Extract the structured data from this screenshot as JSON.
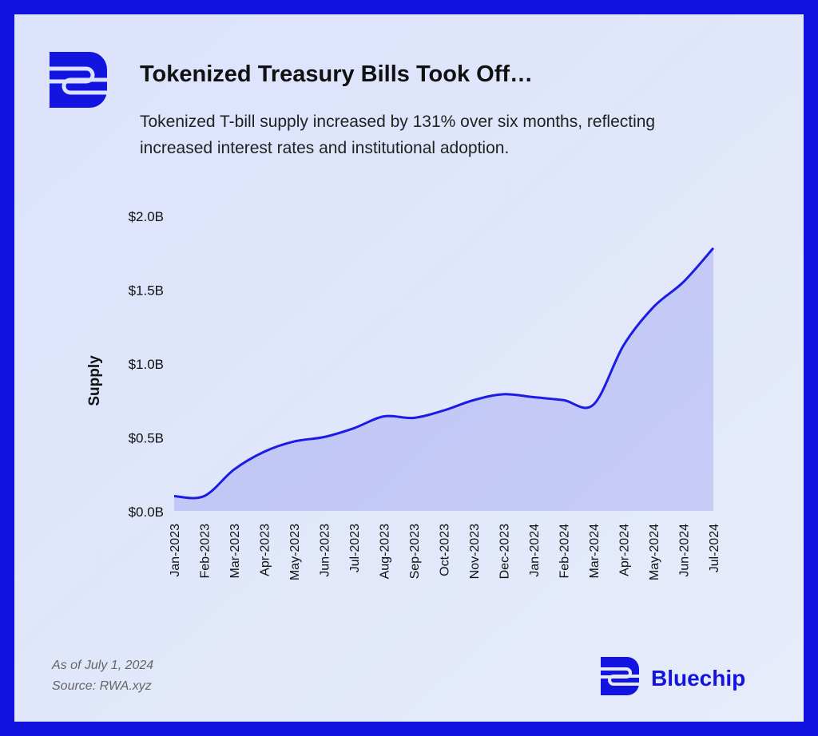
{
  "chart_data": {
    "type": "area",
    "title": "Tokenized Treasury Bills Took Off…",
    "subtitle": [
      "Tokenized T-bill supply increased by 131% over six months, reflecting",
      "increased interest rates and institutional adoption."
    ],
    "y_label": "Supply",
    "categories": [
      "Jan-2023",
      "Feb-2023",
      "Mar-2023",
      "Apr-2023",
      "May-2023",
      "Jun-2023",
      "Jul-2023",
      "Aug-2023",
      "Sep-2023",
      "Oct-2023",
      "Nov-2023",
      "Dec-2023",
      "Jan-2024",
      "Feb-2024",
      "Mar-2024",
      "Apr-2024",
      "May-2024",
      "Jun-2024",
      "Jul-2024"
    ],
    "series": [
      {
        "name": "Supply",
        "color": "#1c1ce6",
        "values": [
          0.1,
          0.1,
          0.28,
          0.4,
          0.47,
          0.5,
          0.56,
          0.64,
          0.63,
          0.68,
          0.75,
          0.79,
          0.77,
          0.75,
          0.72,
          1.12,
          1.38,
          1.55,
          1.78
        ]
      }
    ],
    "ylim": [
      0,
      2
    ],
    "yticks": [
      {
        "value": 0,
        "label": "$0.0B"
      },
      {
        "value": 0.5,
        "label": "$0.5B"
      },
      {
        "value": 1,
        "label": "$1.0B"
      },
      {
        "value": 1.5,
        "label": "$1.5B"
      },
      {
        "value": 2,
        "label": "$2.0B"
      }
    ],
    "grid": false,
    "footnotes": [
      "As of July 1, 2024",
      "Source: RWA.xyz"
    ],
    "brand": "Bluechip"
  }
}
